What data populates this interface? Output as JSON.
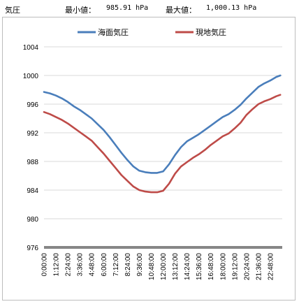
{
  "header": {
    "unit_label": "気圧",
    "min_label": "最小値：",
    "min_value": "985.91 hPa",
    "max_label": "最大値：",
    "max_value": "1,000.13 hPa"
  },
  "colors": {
    "sea_level": "#4a7ebb",
    "station": "#be4b48",
    "grid": "#d9d9d9",
    "axis": "#868686"
  },
  "chart_data": {
    "type": "line",
    "title": "",
    "xlabel": "",
    "ylabel": "",
    "ylim": [
      976,
      1004
    ],
    "yticks": [
      976,
      980,
      984,
      988,
      992,
      996,
      1000,
      1004
    ],
    "grid": true,
    "legend_position": "top",
    "x_tick_labels": [
      "0:00:00",
      "1:12:00",
      "2:24:00",
      "3:36:00",
      "4:48:00",
      "6:00:00",
      "7:12:00",
      "8:24:00",
      "9:36:00",
      "10:48:00",
      "12:00:00",
      "13:12:00",
      "14:24:00",
      "15:36:00",
      "16:48:00",
      "18:00:00",
      "19:12:00",
      "20:24:00",
      "21:36:00",
      "22:48:00"
    ],
    "x": [
      "0:00",
      "0:36",
      "1:12",
      "1:48",
      "2:24",
      "3:00",
      "3:36",
      "4:12",
      "4:48",
      "5:24",
      "6:00",
      "6:36",
      "7:12",
      "7:48",
      "8:24",
      "9:00",
      "9:36",
      "10:12",
      "10:48",
      "11:24",
      "12:00",
      "12:36",
      "13:12",
      "13:48",
      "14:24",
      "15:00",
      "15:36",
      "16:12",
      "16:48",
      "17:24",
      "18:00",
      "18:36",
      "19:12",
      "19:48",
      "20:24",
      "21:00",
      "21:36",
      "22:12",
      "22:48",
      "23:24",
      "23:48"
    ],
    "series": [
      {
        "name": "海面気圧",
        "color": "#4a7ebb",
        "values": [
          997.7,
          997.5,
          997.2,
          996.8,
          996.3,
          995.7,
          995.2,
          994.6,
          994.0,
          993.2,
          992.4,
          991.4,
          990.3,
          989.2,
          988.2,
          987.3,
          986.7,
          986.5,
          986.4,
          986.4,
          986.6,
          987.6,
          988.9,
          990.0,
          990.8,
          991.3,
          991.8,
          992.4,
          993.0,
          993.6,
          994.2,
          994.6,
          995.2,
          995.9,
          996.8,
          997.6,
          998.4,
          998.9,
          999.3,
          999.8,
          1000.0
        ]
      },
      {
        "name": "現地気圧",
        "color": "#be4b48",
        "values": [
          994.9,
          994.6,
          994.2,
          993.8,
          993.3,
          992.7,
          992.1,
          991.5,
          990.9,
          990.0,
          989.1,
          988.1,
          987.1,
          986.1,
          985.3,
          984.5,
          984.0,
          983.8,
          983.7,
          983.7,
          983.9,
          984.9,
          986.3,
          987.3,
          987.9,
          988.5,
          989.0,
          989.6,
          990.3,
          990.9,
          991.5,
          991.9,
          992.6,
          993.4,
          994.5,
          995.3,
          996.0,
          996.4,
          996.7,
          997.1,
          997.3
        ]
      }
    ]
  }
}
